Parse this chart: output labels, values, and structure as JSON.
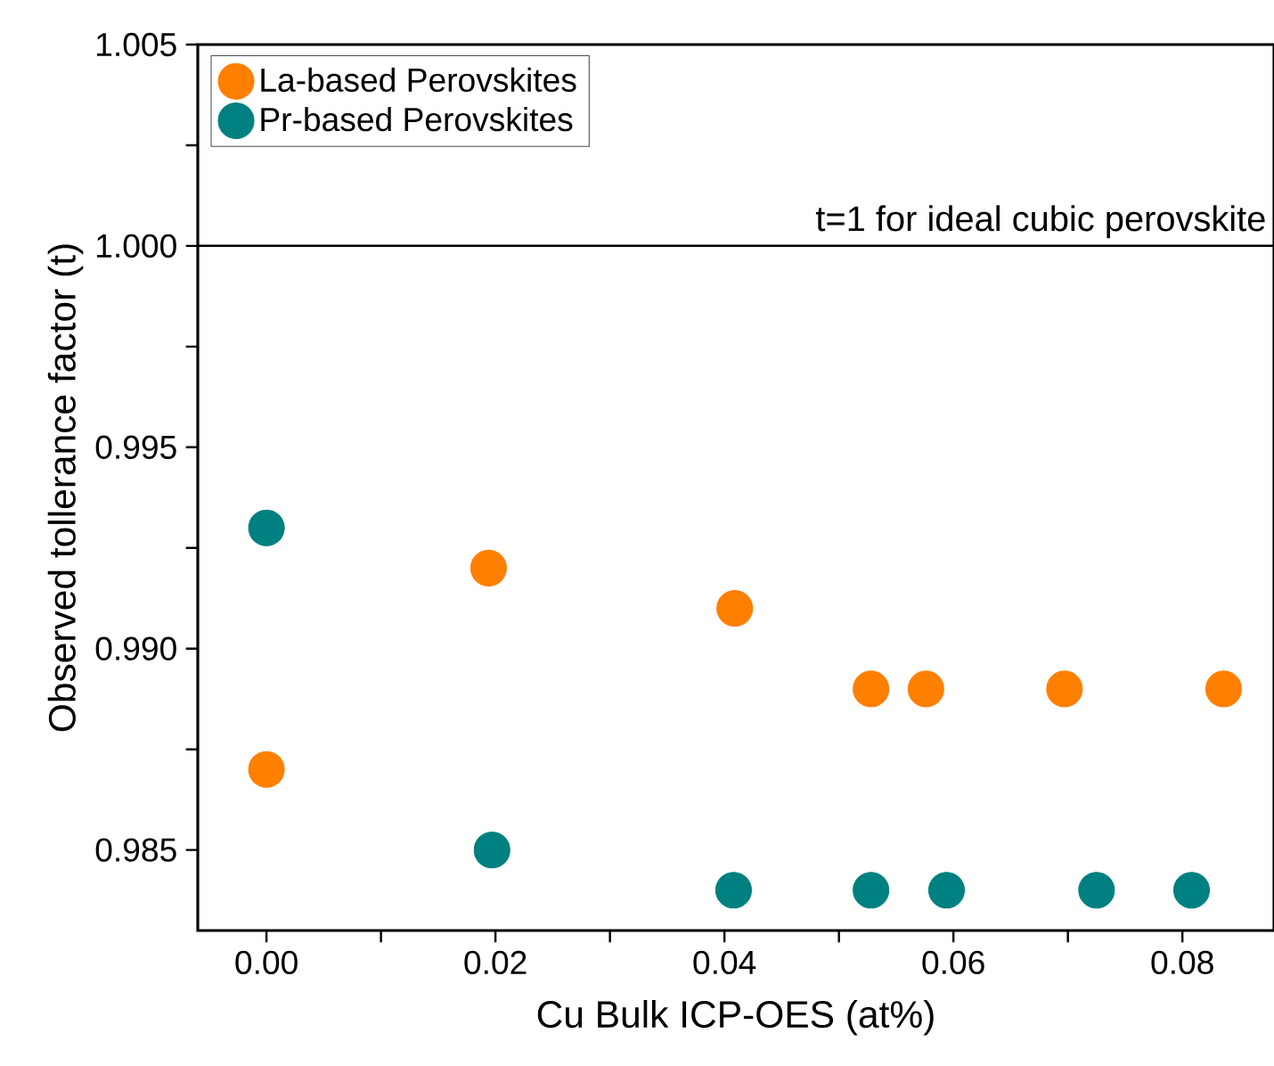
{
  "chart_data": {
    "type": "scatter",
    "xlabel": "Cu Bulk  ICP-OES (at%)",
    "ylabel": "Observed tollerance factor (t)",
    "xlim": [
      -0.006,
      0.088
    ],
    "ylim": [
      0.983,
      1.005
    ],
    "xticks": [
      {
        "value": 0,
        "label": "0.00"
      },
      {
        "value": 0.01,
        "label": null
      },
      {
        "value": 0.02,
        "label": "0.02"
      },
      {
        "value": 0.03,
        "label": null
      },
      {
        "value": 0.04,
        "label": "0.04"
      },
      {
        "value": 0.05,
        "label": null
      },
      {
        "value": 0.06,
        "label": "0.06"
      },
      {
        "value": 0.07,
        "label": null
      },
      {
        "value": 0.08,
        "label": "0.08"
      }
    ],
    "yticks": [
      {
        "value": 0.985,
        "label": "0.985"
      },
      {
        "value": 0.9875,
        "label": null
      },
      {
        "value": 0.99,
        "label": "0.990"
      },
      {
        "value": 0.9925,
        "label": null
      },
      {
        "value": 0.995,
        "label": "0.995"
      },
      {
        "value": 0.9975,
        "label": null
      },
      {
        "value": 1,
        "label": "1.000"
      },
      {
        "value": 1.0025,
        "label": null
      },
      {
        "value": 1.005,
        "label": "1.005"
      }
    ],
    "marker": "circle",
    "legend": "top left",
    "grid": false,
    "ref_lines": [
      {
        "axis": "y",
        "value": 1,
        "label": "t=1 for ideal cubic perovskite",
        "color": "#000000"
      }
    ],
    "series": [
      {
        "name": "La-based Perovskites",
        "color": "#ff7f00",
        "x": [
          0,
          0.0194,
          0.0409,
          0.0528,
          0.0576,
          0.0697,
          0.0836
        ],
        "values": [
          0.987,
          0.992,
          0.991,
          0.989,
          0.989,
          0.989,
          0.989
        ]
      },
      {
        "name": "Pr-based Perovskites",
        "color": "#008080",
        "x": [
          0,
          0.0197,
          0.0408,
          0.0528,
          0.0594,
          0.0725,
          0.0808
        ],
        "values": [
          0.993,
          0.985,
          0.984,
          0.984,
          0.984,
          0.984,
          0.984
        ]
      }
    ]
  }
}
